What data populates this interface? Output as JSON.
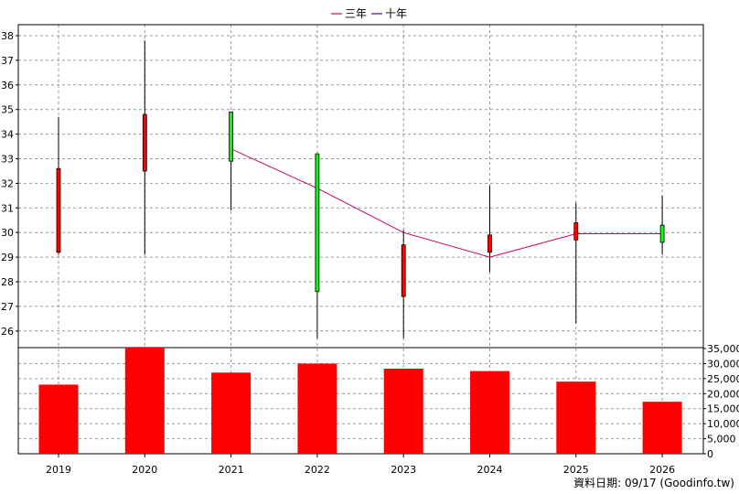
{
  "chart_data": {
    "type": "candlestick-with-volume",
    "x": [
      "2019",
      "2020",
      "2021",
      "2022",
      "2023",
      "2024",
      "2025",
      "2026"
    ],
    "legend": [
      {
        "name": "三年",
        "color": "#cc0066"
      },
      {
        "name": "十年",
        "color": "#660099"
      }
    ],
    "price_axis": {
      "min": 25,
      "max": 38.5,
      "ticks": [
        26,
        27,
        28,
        29,
        30,
        31,
        32,
        33,
        34,
        35,
        36,
        37,
        38
      ]
    },
    "candles": [
      {
        "x": "2019",
        "open": 29.2,
        "close": 32.6,
        "high": 34.7,
        "low": 29.1,
        "color": "#ff0000"
      },
      {
        "x": "2020",
        "open": 32.5,
        "close": 34.8,
        "high": 37.8,
        "low": 29.1,
        "color": "#ff0000"
      },
      {
        "x": "2021",
        "open": 34.9,
        "close": 32.9,
        "high": 34.9,
        "low": 30.9,
        "color": "#00ff00"
      },
      {
        "x": "2022",
        "open": 33.2,
        "close": 27.6,
        "high": 33.2,
        "low": 25.7,
        "color": "#00ff00"
      },
      {
        "x": "2023",
        "open": 27.4,
        "close": 29.5,
        "high": 30.1,
        "low": 25.7,
        "color": "#ff0000"
      },
      {
        "x": "2024",
        "open": 29.2,
        "close": 29.9,
        "high": 31.9,
        "low": 28.4,
        "color": "#ff0000"
      },
      {
        "x": "2025",
        "open": 29.7,
        "close": 30.4,
        "high": 31.2,
        "low": 26.3,
        "color": "#ff0000"
      },
      {
        "x": "2026",
        "open": 30.3,
        "close": 29.6,
        "high": 31.5,
        "low": 29.1,
        "color": "#00ff00"
      }
    ],
    "moving_average_three_year": {
      "x": [
        "2021",
        "2022",
        "2023",
        "2024",
        "2025",
        "2026"
      ],
      "values": [
        33.4,
        31.8,
        30.0,
        29.0,
        29.95,
        29.95
      ],
      "color": "#cc0066"
    },
    "volume_axis": {
      "min": 0,
      "max": 35000,
      "ticks": [
        0,
        5000,
        10000,
        15000,
        20000,
        25000,
        30000,
        35000
      ],
      "tick_labels": [
        "0",
        "5,000",
        "10,000",
        "15,000",
        "20,000",
        "25,000",
        "30,000",
        "35,000"
      ]
    },
    "volume": {
      "values": [
        23000,
        35500,
        27000,
        30000,
        28300,
        27500,
        24000,
        17300
      ],
      "color": "#ff0000"
    },
    "grid": true
  },
  "footer": {
    "text": "資料日期: 09/17  (Goodinfo.tw)"
  }
}
